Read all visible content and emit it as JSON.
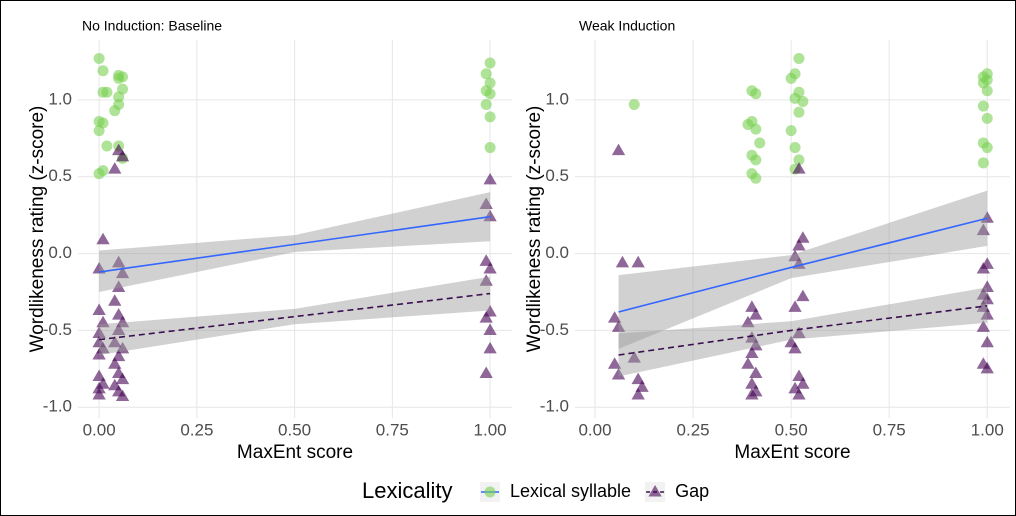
{
  "chart_data": [
    {
      "type": "scatter",
      "title": "No Induction: Baseline",
      "xlabel": "MaxEnt score",
      "ylabel": "Wordlikeness rating (z-score)",
      "xlim": [
        -0.054,
        1.056
      ],
      "ylim": [
        -1.07,
        1.39
      ],
      "xticks": [
        {
          "value": 0,
          "label": "0.00"
        },
        {
          "value": 0.25,
          "label": "0.25"
        },
        {
          "value": 0.5,
          "label": "0.50"
        },
        {
          "value": 0.75,
          "label": "0.75"
        },
        {
          "value": 1,
          "label": "1.00"
        }
      ],
      "yticks": [
        {
          "value": -1,
          "label": "-1.0"
        },
        {
          "value": -0.5,
          "label": "-0.5"
        },
        {
          "value": 0,
          "label": "0.0"
        },
        {
          "value": 0.5,
          "label": "0.5"
        },
        {
          "value": 1,
          "label": "1.0"
        }
      ],
      "grid": true,
      "series": [
        {
          "name": "Lexical syllable",
          "color": "#7AD151",
          "marker": "circle",
          "x": [
            0.0,
            0.01,
            0.02,
            0.01,
            0.0,
            0.01,
            0.0,
            0.02,
            0.01,
            0.0,
            0.05,
            0.06,
            0.05,
            0.06,
            0.05,
            0.05,
            0.04,
            0.05,
            0.06,
            1.0,
            0.99,
            1.0,
            0.99,
            1.0,
            0.99,
            1.0,
            1.0
          ],
          "values": [
            1.27,
            1.19,
            1.05,
            1.05,
            0.86,
            0.85,
            0.8,
            0.7,
            0.54,
            0.52,
            1.16,
            1.15,
            1.14,
            1.07,
            1.02,
            0.97,
            0.93,
            0.7,
            0.62,
            1.24,
            1.17,
            1.11,
            1.06,
            1.04,
            0.97,
            0.89,
            0.69
          ],
          "fit": {
            "color": "#3366FF",
            "linetype": "solid",
            "x": [
              0,
              0.5,
              1
            ],
            "y": [
              -0.12,
              0.06,
              0.24
            ],
            "lower": [
              -0.25,
              0.01,
              0.08
            ],
            "upper": [
              0.02,
              0.12,
              0.4
            ]
          }
        },
        {
          "name": "Gap",
          "color": "#440154",
          "marker": "triangle",
          "x": [
            0.01,
            0.0,
            0.0,
            0.01,
            0.0,
            0.0,
            0.01,
            0.0,
            0.0,
            0.01,
            0.0,
            0.0,
            0.05,
            0.06,
            0.04,
            0.05,
            0.06,
            0.05,
            0.04,
            0.05,
            0.06,
            0.05,
            0.04,
            0.06,
            0.05,
            0.04,
            0.05,
            0.06,
            0.04,
            0.05,
            0.06,
            1.0,
            0.99,
            1.0,
            0.99,
            1.0,
            0.99,
            1.0,
            0.99,
            1.0,
            1.0,
            0.99
          ],
          "values": [
            0.09,
            -0.1,
            -0.37,
            -0.45,
            -0.52,
            -0.58,
            -0.62,
            -0.66,
            -0.8,
            -0.85,
            -0.88,
            -0.92,
            0.67,
            0.63,
            0.55,
            -0.06,
            -0.13,
            -0.22,
            -0.31,
            -0.4,
            -0.45,
            -0.5,
            -0.58,
            -0.62,
            -0.67,
            -0.72,
            -0.78,
            -0.82,
            -0.86,
            -0.9,
            -0.93,
            0.48,
            0.32,
            0.24,
            -0.05,
            -0.1,
            -0.18,
            -0.38,
            -0.42,
            -0.5,
            -0.62,
            -0.78
          ],
          "fit": {
            "color": "#3B0F4F",
            "linetype": "dashed",
            "x": [
              0,
              0.5,
              1
            ],
            "y": [
              -0.56,
              -0.41,
              -0.26
            ],
            "lower": [
              -0.66,
              -0.46,
              -0.37
            ],
            "upper": [
              -0.46,
              -0.36,
              -0.15
            ]
          }
        }
      ]
    },
    {
      "type": "scatter",
      "title": "Weak Induction",
      "xlabel": "MaxEnt score",
      "ylabel": "Wordlikeness rating (z-score)",
      "xlim": [
        -0.051,
        1.058
      ],
      "ylim": [
        -1.07,
        1.39
      ],
      "xticks": [
        {
          "value": 0,
          "label": "0.00"
        },
        {
          "value": 0.25,
          "label": "0.25"
        },
        {
          "value": 0.5,
          "label": "0.50"
        },
        {
          "value": 0.75,
          "label": "0.75"
        },
        {
          "value": 1,
          "label": "1.00"
        }
      ],
      "yticks": [
        {
          "value": -1,
          "label": "-1.0"
        },
        {
          "value": -0.5,
          "label": "-0.5"
        },
        {
          "value": 0,
          "label": "0.0"
        },
        {
          "value": 0.5,
          "label": "0.5"
        },
        {
          "value": 1,
          "label": "1.0"
        }
      ],
      "grid": true,
      "series": [
        {
          "name": "Lexical syllable",
          "color": "#7AD151",
          "marker": "circle",
          "x": [
            0.1,
            0.4,
            0.41,
            0.4,
            0.39,
            0.41,
            0.42,
            0.4,
            0.41,
            0.4,
            0.41,
            0.52,
            0.51,
            0.5,
            0.52,
            0.51,
            0.53,
            0.52,
            0.5,
            0.51,
            0.52,
            0.51,
            1.0,
            0.99,
            1.0,
            0.99,
            1.0,
            0.99,
            1.0,
            0.99,
            1.0,
            0.99
          ],
          "values": [
            0.97,
            1.06,
            1.04,
            0.86,
            0.84,
            0.81,
            0.72,
            0.64,
            0.61,
            0.52,
            0.49,
            1.27,
            1.17,
            1.14,
            1.05,
            1.01,
            0.99,
            0.92,
            0.8,
            0.69,
            0.61,
            0.55,
            1.17,
            1.15,
            1.13,
            1.11,
            1.06,
            0.96,
            0.88,
            0.72,
            0.69,
            0.59
          ],
          "fit": {
            "color": "#3366FF",
            "linetype": "solid",
            "x": [
              0.06,
              0.5,
              1
            ],
            "y": [
              -0.38,
              -0.09,
              0.23
            ],
            "lower": [
              -0.62,
              -0.16,
              0.05
            ],
            "upper": [
              -0.14,
              -0.01,
              0.41
            ]
          }
        },
        {
          "name": "Gap",
          "color": "#440154",
          "marker": "triangle",
          "x": [
            0.06,
            0.05,
            0.06,
            0.05,
            0.06,
            0.07,
            0.11,
            0.1,
            0.11,
            0.12,
            0.11,
            0.4,
            0.41,
            0.39,
            0.4,
            0.41,
            0.4,
            0.39,
            0.41,
            0.4,
            0.41,
            0.4,
            0.52,
            0.53,
            0.52,
            0.51,
            0.52,
            0.53,
            0.51,
            0.52,
            0.5,
            0.51,
            0.52,
            0.53,
            0.51,
            0.52,
            1.0,
            0.99,
            1.0,
            0.99,
            1.0,
            0.99,
            1.0,
            0.99,
            1.0,
            0.99,
            1.0,
            0.99,
            1.0
          ],
          "values": [
            0.67,
            -0.42,
            -0.48,
            -0.72,
            -0.79,
            -0.06,
            -0.06,
            -0.68,
            -0.82,
            -0.87,
            -0.92,
            -0.35,
            -0.4,
            -0.45,
            -0.55,
            -0.6,
            -0.65,
            -0.72,
            -0.78,
            -0.85,
            -0.9,
            -0.92,
            0.55,
            0.1,
            0.05,
            -0.02,
            -0.07,
            -0.28,
            -0.35,
            -0.52,
            -0.58,
            -0.62,
            -0.8,
            -0.85,
            -0.88,
            -0.92,
            0.23,
            0.15,
            -0.07,
            -0.1,
            -0.22,
            -0.27,
            -0.3,
            -0.35,
            -0.4,
            -0.48,
            -0.58,
            -0.72,
            -0.75
          ],
          "fit": {
            "color": "#3B0F4F",
            "linetype": "dashed",
            "x": [
              0.06,
              0.5,
              1
            ],
            "y": [
              -0.66,
              -0.5,
              -0.34
            ],
            "lower": [
              -0.8,
              -0.56,
              -0.45
            ],
            "upper": [
              -0.52,
              -0.44,
              -0.22
            ]
          }
        }
      ]
    }
  ],
  "legend": {
    "title": "Lexicality",
    "position": "bottom"
  }
}
